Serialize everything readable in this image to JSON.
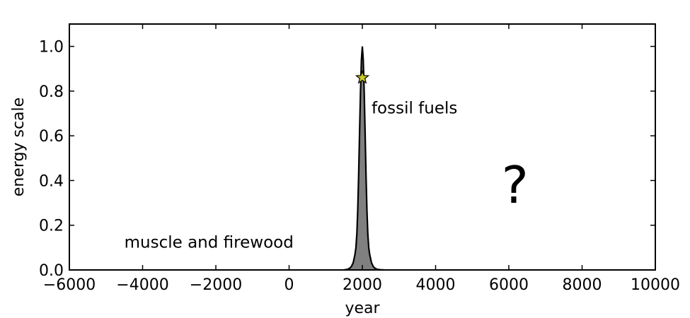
{
  "chart_data": {
    "type": "area",
    "title": "",
    "xlabel": "year",
    "ylabel": "energy scale",
    "xlim": [
      -6000,
      10000
    ],
    "ylim": [
      0,
      1.1
    ],
    "x_ticks": [
      -6000,
      -4000,
      -2000,
      0,
      2000,
      4000,
      6000,
      8000,
      10000
    ],
    "x_tick_labels": [
      "−6000",
      "−4000",
      "−2000",
      "0",
      "2000",
      "4000",
      "6000",
      "8000",
      "10000"
    ],
    "y_ticks": [
      0.0,
      0.2,
      0.4,
      0.6,
      0.8,
      1.0
    ],
    "y_tick_labels": [
      "0.0",
      "0.2",
      "0.4",
      "0.6",
      "0.8",
      "1.0"
    ],
    "grid": false,
    "series": [
      {
        "x": [
          1500,
          1600,
          1650,
          1700,
          1750,
          1800,
          1825,
          1850,
          1875,
          1900,
          1925,
          1950,
          1975,
          2000,
          2025,
          2050,
          2075,
          2100,
          2125,
          2150,
          2175,
          2200,
          2250,
          2300,
          2350,
          2400,
          2500,
          2600
        ],
        "y": [
          0.0,
          0.003,
          0.007,
          0.015,
          0.032,
          0.07,
          0.1,
          0.16,
          0.27,
          0.43,
          0.62,
          0.8,
          0.94,
          1.0,
          0.94,
          0.8,
          0.62,
          0.43,
          0.27,
          0.16,
          0.1,
          0.07,
          0.032,
          0.015,
          0.007,
          0.003,
          0.001,
          0.0
        ],
        "fill_color": "#808080",
        "line_color": "#000000"
      }
    ],
    "markers": [
      {
        "x": 2000,
        "y": 0.86,
        "shape": "star",
        "color": "#c8c828"
      }
    ],
    "annotations": [
      {
        "text": "fossil fuels",
        "x": 2250,
        "y": 0.7,
        "size": "normal"
      },
      {
        "text": "muscle and firewood",
        "x": -4500,
        "y": 0.1,
        "size": "normal"
      },
      {
        "text": "?",
        "x": 5800,
        "y": 0.3,
        "size": "large"
      }
    ]
  }
}
